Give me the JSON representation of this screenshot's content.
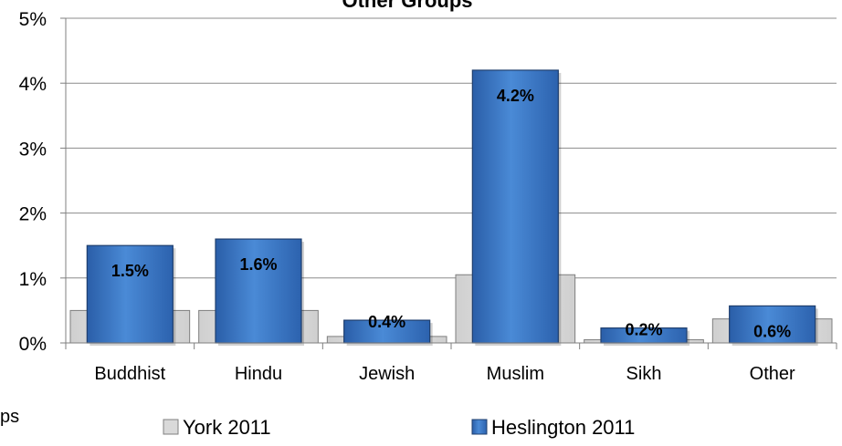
{
  "chart_data": {
    "type": "bar",
    "title": "Other Groups",
    "categories": [
      "Buddhist",
      "Hindu",
      "Jewish",
      "Muslim",
      "Sikh",
      "Other"
    ],
    "series": [
      {
        "name": "York 2011",
        "values": [
          0.5,
          0.5,
          0.1,
          1.05,
          0.05,
          0.37
        ],
        "color": "#d9d9d9"
      },
      {
        "name": "Heslington 2011",
        "values": [
          1.5,
          1.6,
          0.35,
          4.2,
          0.23,
          0.57
        ],
        "color": "#3a74c2"
      }
    ],
    "data_labels": [
      "1.5%",
      "1.6%",
      "0.4%",
      "4.2%",
      "0.2%",
      "0.6%"
    ],
    "yticks": [
      "0%",
      "1%",
      "2%",
      "3%",
      "4%",
      "5%"
    ],
    "ylim": [
      0,
      5
    ],
    "grid": true,
    "legend_position": "bottom",
    "cut_text": "ps"
  }
}
